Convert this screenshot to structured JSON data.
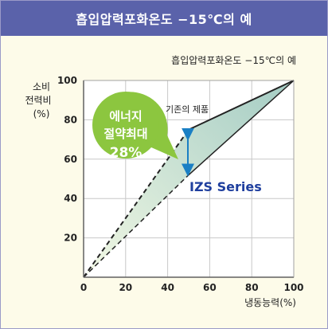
{
  "header": {
    "title": "흡입압력포화온도  −15℃의 예"
  },
  "chart_data": {
    "type": "area",
    "title": "흡입압력포화온도 −15℃의 예",
    "ylabel": [
      "소비",
      "전력비",
      "(%)"
    ],
    "xlabel": "냉동능력(%)",
    "xlim": [
      0,
      100
    ],
    "ylim": [
      0,
      100
    ],
    "xticks": [
      0,
      20,
      40,
      60,
      80,
      100
    ],
    "yticks": [
      20,
      40,
      60,
      80,
      100
    ],
    "series": [
      {
        "name": "기존의 제품",
        "points": [
          [
            0,
            0
          ],
          [
            50,
            75
          ],
          [
            100,
            100
          ]
        ]
      },
      {
        "name": "IZS Series",
        "points": [
          [
            0,
            0
          ],
          [
            50,
            52
          ],
          [
            100,
            100
          ]
        ]
      }
    ],
    "callout": {
      "lines": [
        "에너지",
        "절약최대",
        "28%"
      ]
    },
    "colors": {
      "header": "#5a62aa",
      "background": "#fdfbe9",
      "fill_light": "#eef6e0",
      "fill_dark": "#a9d0c6",
      "callout": "#8cc63f",
      "arrow": "#1a7fc4",
      "izs_label": "#1f3f9e"
    }
  }
}
